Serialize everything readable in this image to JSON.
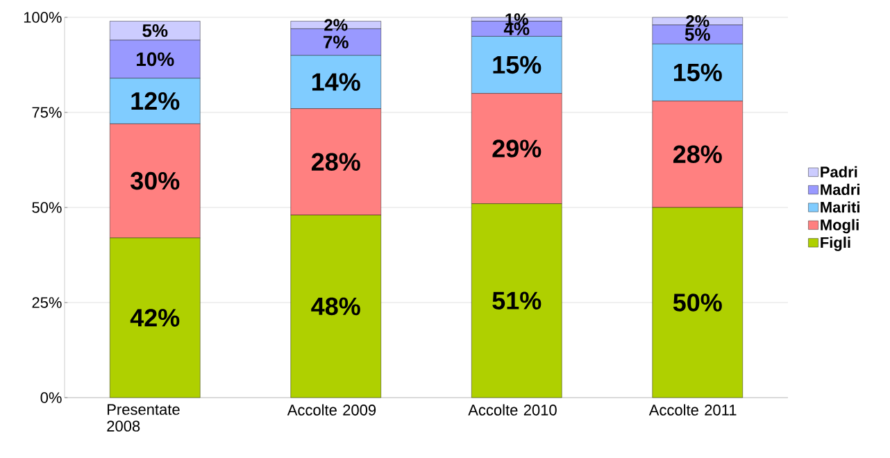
{
  "chart_data": {
    "type": "bar",
    "stacked": true,
    "categories": [
      "Presentate 2008",
      "Accolte 2009",
      "Accolte 2010",
      "Accolte 2011"
    ],
    "series": [
      {
        "name": "Figli",
        "color": "#afd000",
        "values": [
          42,
          48,
          51,
          50
        ],
        "value_labels": [
          "42%",
          "48%",
          "51%",
          "50%"
        ]
      },
      {
        "name": "Mogli",
        "color": "#ff8080",
        "values": [
          30,
          28,
          29,
          28
        ],
        "value_labels": [
          "30%",
          "28%",
          "29%",
          "28%"
        ]
      },
      {
        "name": "Mariti",
        "color": "#80ccff",
        "values": [
          12,
          14,
          15,
          15
        ],
        "value_labels": [
          "12%",
          "14%",
          "15%",
          "15%"
        ]
      },
      {
        "name": "Madri",
        "color": "#9999ff",
        "values": [
          10,
          7,
          4,
          5
        ],
        "value_labels": [
          "10%",
          "7%",
          "4%",
          "5%"
        ]
      },
      {
        "name": "Padri",
        "color": "#ccccff",
        "values": [
          5,
          2,
          1,
          2
        ],
        "value_labels": [
          "5%",
          "2%",
          "1%",
          "2%"
        ]
      }
    ],
    "ylim": [
      0,
      100
    ],
    "yticks": [
      {
        "value": 0,
        "label": "0%"
      },
      {
        "value": 25,
        "label": "25%"
      },
      {
        "value": 50,
        "label": "50%"
      },
      {
        "value": 75,
        "label": "75%"
      },
      {
        "value": 100,
        "label": "100%"
      }
    ],
    "grid": "y",
    "legend": "right"
  }
}
